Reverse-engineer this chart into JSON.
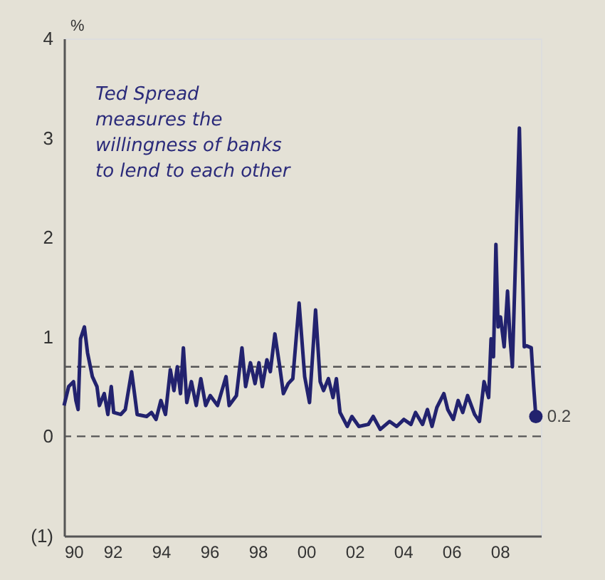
{
  "chart_data": {
    "type": "line",
    "ylabel": "%",
    "x": [
      1990.0,
      1990.19,
      1990.39,
      1990.49,
      1990.58,
      1990.68,
      1990.84,
      1990.97,
      1991.17,
      1991.36,
      1991.46,
      1991.66,
      1991.81,
      1991.95,
      1992.05,
      1992.34,
      1992.53,
      1992.79,
      1992.92,
      1993.02,
      1993.41,
      1993.61,
      1993.8,
      1994.0,
      1994.19,
      1994.39,
      1994.54,
      1994.68,
      1994.81,
      1994.93,
      1995.07,
      1995.26,
      1995.46,
      1995.65,
      1995.85,
      1996.04,
      1996.34,
      1996.69,
      1996.82,
      1997.12,
      1997.35,
      1997.5,
      1997.7,
      1997.89,
      1998.05,
      1998.19,
      1998.38,
      1998.52,
      1998.71,
      1998.91,
      1999.06,
      1999.26,
      1999.45,
      1999.71,
      1999.94,
      2000.14,
      2000.39,
      2000.58,
      2000.72,
      2000.92,
      2001.11,
      2001.25,
      2001.4,
      2001.7,
      2001.89,
      2002.18,
      2002.57,
      2002.77,
      2003.06,
      2003.45,
      2003.74,
      2004.04,
      2004.33,
      2004.52,
      2004.81,
      2005.01,
      2005.2,
      2005.4,
      2005.69,
      2005.85,
      2006.08,
      2006.28,
      2006.47,
      2006.67,
      2006.96,
      2007.16,
      2007.35,
      2007.54,
      2007.64,
      2007.74,
      2007.84,
      2007.93,
      2008.03,
      2008.18,
      2008.32,
      2008.42,
      2008.52,
      2008.81,
      2009.01,
      2009.11,
      2009.3,
      2009.4,
      2009.49
    ],
    "series": [
      {
        "color": "#22226e",
        "values": [
          0.31,
          0.5,
          0.55,
          0.36,
          0.27,
          0.98,
          1.1,
          0.84,
          0.6,
          0.5,
          0.31,
          0.43,
          0.22,
          0.5,
          0.24,
          0.22,
          0.27,
          0.65,
          0.41,
          0.22,
          0.2,
          0.24,
          0.17,
          0.36,
          0.22,
          0.67,
          0.46,
          0.7,
          0.43,
          0.89,
          0.34,
          0.55,
          0.31,
          0.58,
          0.31,
          0.41,
          0.31,
          0.6,
          0.31,
          0.41,
          0.89,
          0.5,
          0.74,
          0.53,
          0.74,
          0.5,
          0.77,
          0.65,
          1.03,
          0.7,
          0.43,
          0.53,
          0.58,
          1.34,
          0.6,
          0.34,
          1.27,
          0.55,
          0.46,
          0.58,
          0.39,
          0.58,
          0.24,
          0.1,
          0.2,
          0.1,
          0.12,
          0.2,
          0.07,
          0.15,
          0.1,
          0.17,
          0.12,
          0.24,
          0.12,
          0.27,
          0.1,
          0.29,
          0.43,
          0.27,
          0.17,
          0.36,
          0.24,
          0.41,
          0.22,
          0.15,
          0.55,
          0.39,
          0.98,
          0.8,
          1.93,
          1.1,
          1.2,
          0.9,
          1.46,
          1.0,
          0.7,
          3.1,
          0.9,
          0.91,
          0.89,
          0.5,
          0.2
        ]
      }
    ],
    "xlim": [
      1990,
      2009.7
    ],
    "ylim": [
      -1,
      4
    ],
    "xticks": [
      {
        "value": 1990,
        "label": "90"
      },
      {
        "value": 1992,
        "label": "92"
      },
      {
        "value": 1994,
        "label": "94"
      },
      {
        "value": 1996,
        "label": "96"
      },
      {
        "value": 1998,
        "label": "98"
      },
      {
        "value": 2000,
        "label": "00"
      },
      {
        "value": 2002,
        "label": "02"
      },
      {
        "value": 2004,
        "label": "04"
      },
      {
        "value": 2006,
        "label": "06"
      },
      {
        "value": 2008,
        "label": "08"
      }
    ],
    "yticks": [
      {
        "value": -1,
        "label": "(1)"
      },
      0,
      1,
      2,
      3,
      4
    ],
    "ref_lines": [
      {
        "axis": "y",
        "value": 0.7,
        "color": "#555555",
        "line_style": "dashed"
      },
      {
        "axis": "y",
        "value": 0,
        "color": "#555555",
        "line_style": "dashed"
      }
    ],
    "annotations": [
      "Ted Spread\nmeasures the\nwillingness of banks\nto lend to each other",
      {
        "text": "0.2",
        "x": 2009.49,
        "y": 0.2
      }
    ],
    "grid": false,
    "marker": "none",
    "line_style": "solid"
  }
}
